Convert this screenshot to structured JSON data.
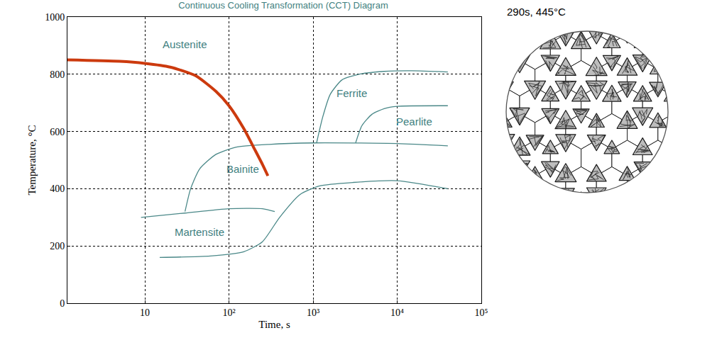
{
  "chart_data": {
    "type": "line",
    "title": "Continuous Cooling Transformation (CCT) Diagram",
    "x_label": "Time, s",
    "y_label": "Temperature, °C",
    "log": "x",
    "grid": true,
    "xlim": [
      1.2,
      100000
    ],
    "ylim": [
      0,
      1000
    ],
    "xticks": [
      10,
      {
        "value": 100,
        "label": "10²"
      },
      {
        "value": 1000,
        "label": "10³"
      },
      {
        "value": 10000,
        "label": "10⁴"
      },
      {
        "value": 100000,
        "label": "10⁵"
      }
    ],
    "yticks": [
      0,
      200,
      400,
      600,
      800,
      1000
    ],
    "series": [
      {
        "color": "#4a8888",
        "line_style": "solid",
        "x": [
          1100,
          1300,
          1600,
          2200,
          3500,
          7000,
          15000,
          40000
        ],
        "values": [
          560,
          650,
          730,
          780,
          800,
          810,
          812,
          808
        ]
      },
      {
        "color": "#4a8888",
        "line_style": "solid",
        "x": [
          3200,
          3800,
          5000,
          7000,
          10000,
          40000
        ],
        "values": [
          560,
          620,
          660,
          680,
          688,
          690
        ]
      },
      {
        "color": "#4a8888",
        "line_style": "solid",
        "x": [
          30,
          35,
          45,
          70,
          120,
          300,
          1000,
          10000,
          40000
        ],
        "values": [
          320,
          400,
          470,
          520,
          545,
          555,
          560,
          558,
          550
        ]
      },
      {
        "color": "#4a8888",
        "line_style": "solid",
        "x": [
          9,
          30,
          100,
          250,
          350
        ],
        "values": [
          300,
          315,
          330,
          330,
          320
        ]
      },
      {
        "color": "#4a8888",
        "line_style": "solid",
        "x": [
          15,
          60,
          150,
          250,
          400,
          700,
          1200,
          3000,
          10000,
          40000
        ],
        "values": [
          160,
          165,
          180,
          215,
          300,
          380,
          410,
          422,
          428,
          400
        ]
      },
      {
        "color": "#cc3a0e",
        "line_style": "bold",
        "x": [
          1.2,
          5,
          10,
          20,
          40,
          70,
          100,
          150,
          200,
          250,
          290
        ],
        "values": [
          850,
          845,
          838,
          825,
          795,
          740,
          690,
          610,
          540,
          485,
          445
        ]
      }
    ],
    "annotations": [
      {
        "text": "Austenite",
        "x": 30,
        "y": 905
      },
      {
        "text": "Ferrite",
        "x": 2900,
        "y": 734
      },
      {
        "text": "Pearlite",
        "x": 16000,
        "y": 634
      },
      {
        "text": "Bainite",
        "x": 146,
        "y": 470
      },
      {
        "text": "Martensite",
        "x": 45,
        "y": 250
      }
    ]
  },
  "micrograph": {
    "title": "290s, 445°C"
  }
}
